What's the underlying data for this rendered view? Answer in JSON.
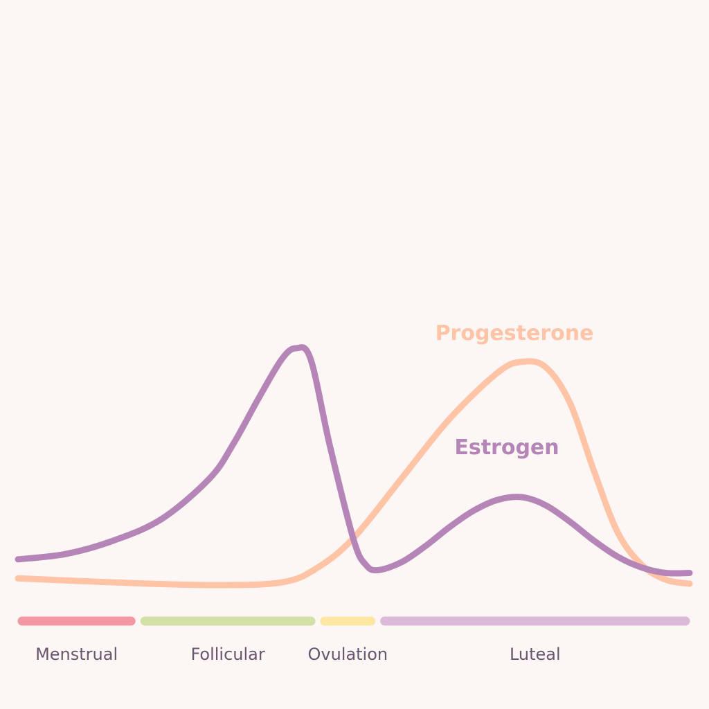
{
  "chart_data": {
    "type": "line",
    "title": "",
    "xlabel": "",
    "ylabel": "",
    "xlim": [
      0,
      28
    ],
    "ylim": [
      0,
      100
    ],
    "grid": false,
    "axes_visible": false,
    "series": [
      {
        "name": "Progesterone",
        "color": "#ffc3a6",
        "x": [
          0,
          4,
          8,
          11,
          12.5,
          14,
          16,
          18,
          20,
          21,
          22,
          23,
          24,
          25,
          26,
          27,
          28
        ],
        "y": [
          3,
          1.5,
          0.5,
          1.5,
          7,
          18,
          40,
          62,
          79,
          83,
          81,
          68,
          43,
          20,
          8,
          2.5,
          1
        ]
      },
      {
        "name": "Estrogen",
        "color": "#b585b8",
        "x": [
          0,
          2,
          4,
          6,
          8,
          9,
          10,
          11,
          11.6,
          12.2,
          13,
          14,
          14.5,
          15,
          16,
          17,
          18,
          19,
          20,
          21,
          22,
          23,
          24,
          25,
          26,
          27,
          28
        ],
        "y": [
          10,
          12,
          17,
          25,
          40,
          53,
          69,
          84,
          88,
          84,
          52,
          17,
          8,
          6,
          9,
          15,
          22,
          28,
          32,
          33,
          30,
          24,
          17,
          11,
          7,
          5,
          5
        ]
      }
    ],
    "phases": [
      {
        "label": "Menstrual",
        "start": 0,
        "end": 5,
        "color": "#f497a4"
      },
      {
        "label": "Follicular",
        "start": 5,
        "end": 12.5,
        "color": "#d2dfa7"
      },
      {
        "label": "Ovulation",
        "start": 12.5,
        "end": 15,
        "color": "#fbe7a1"
      },
      {
        "label": "Luteal",
        "start": 15,
        "end": 28,
        "color": "#dcb9d9"
      }
    ]
  }
}
